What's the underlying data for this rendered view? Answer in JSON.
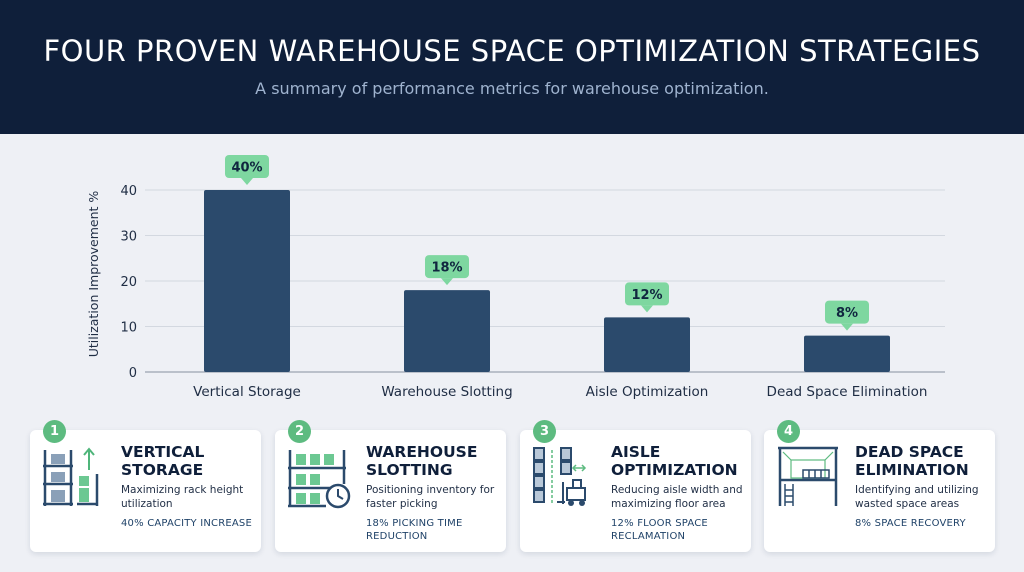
{
  "header": {
    "title": "FOUR PROVEN WAREHOUSE SPACE OPTIMIZATION STRATEGIES",
    "subtitle": "A summary of performance metrics for warehouse optimization."
  },
  "chart_data": {
    "type": "bar",
    "categories": [
      "Vertical Storage",
      "Warehouse Slotting",
      "Aisle Optimization",
      "Dead Space Elimination"
    ],
    "values": [
      40,
      18,
      12,
      8
    ],
    "data_labels": [
      "40%",
      "18%",
      "12%",
      "8%"
    ],
    "ylabel": "Utilization Improvement %",
    "xlabel": "",
    "ylim": [
      0,
      40
    ],
    "yticks": [
      0,
      10,
      20,
      30,
      40
    ],
    "grid": true,
    "bar_color": "#2b4a6c",
    "label_color": "#7ed7a0"
  },
  "cards": [
    {
      "number": "1",
      "title": "VERTICAL STORAGE",
      "description": "Maximizing rack height utilization",
      "metric": "40% CAPACITY INCREASE",
      "icon": "vertical-rack-icon"
    },
    {
      "number": "2",
      "title": "WAREHOUSE SLOTTING",
      "description": "Positioning inventory for faster picking",
      "metric": "18% PICKING TIME REDUCTION",
      "icon": "shelf-clock-icon"
    },
    {
      "number": "3",
      "title": "AISLE OPTIMIZATION",
      "description": "Reducing aisle width and maximizing floor area",
      "metric": "12% FLOOR SPACE RECLAMATION",
      "icon": "aisle-forklift-icon"
    },
    {
      "number": "4",
      "title": "DEAD SPACE ELIMINATION",
      "description": "Identifying and utilizing wasted space areas",
      "metric": "8% SPACE RECOVERY",
      "icon": "dead-space-icon"
    }
  ],
  "colors": {
    "header_bg": "#0f1f3a",
    "accent_green": "#5dbb80",
    "bar": "#2b4a6c"
  }
}
